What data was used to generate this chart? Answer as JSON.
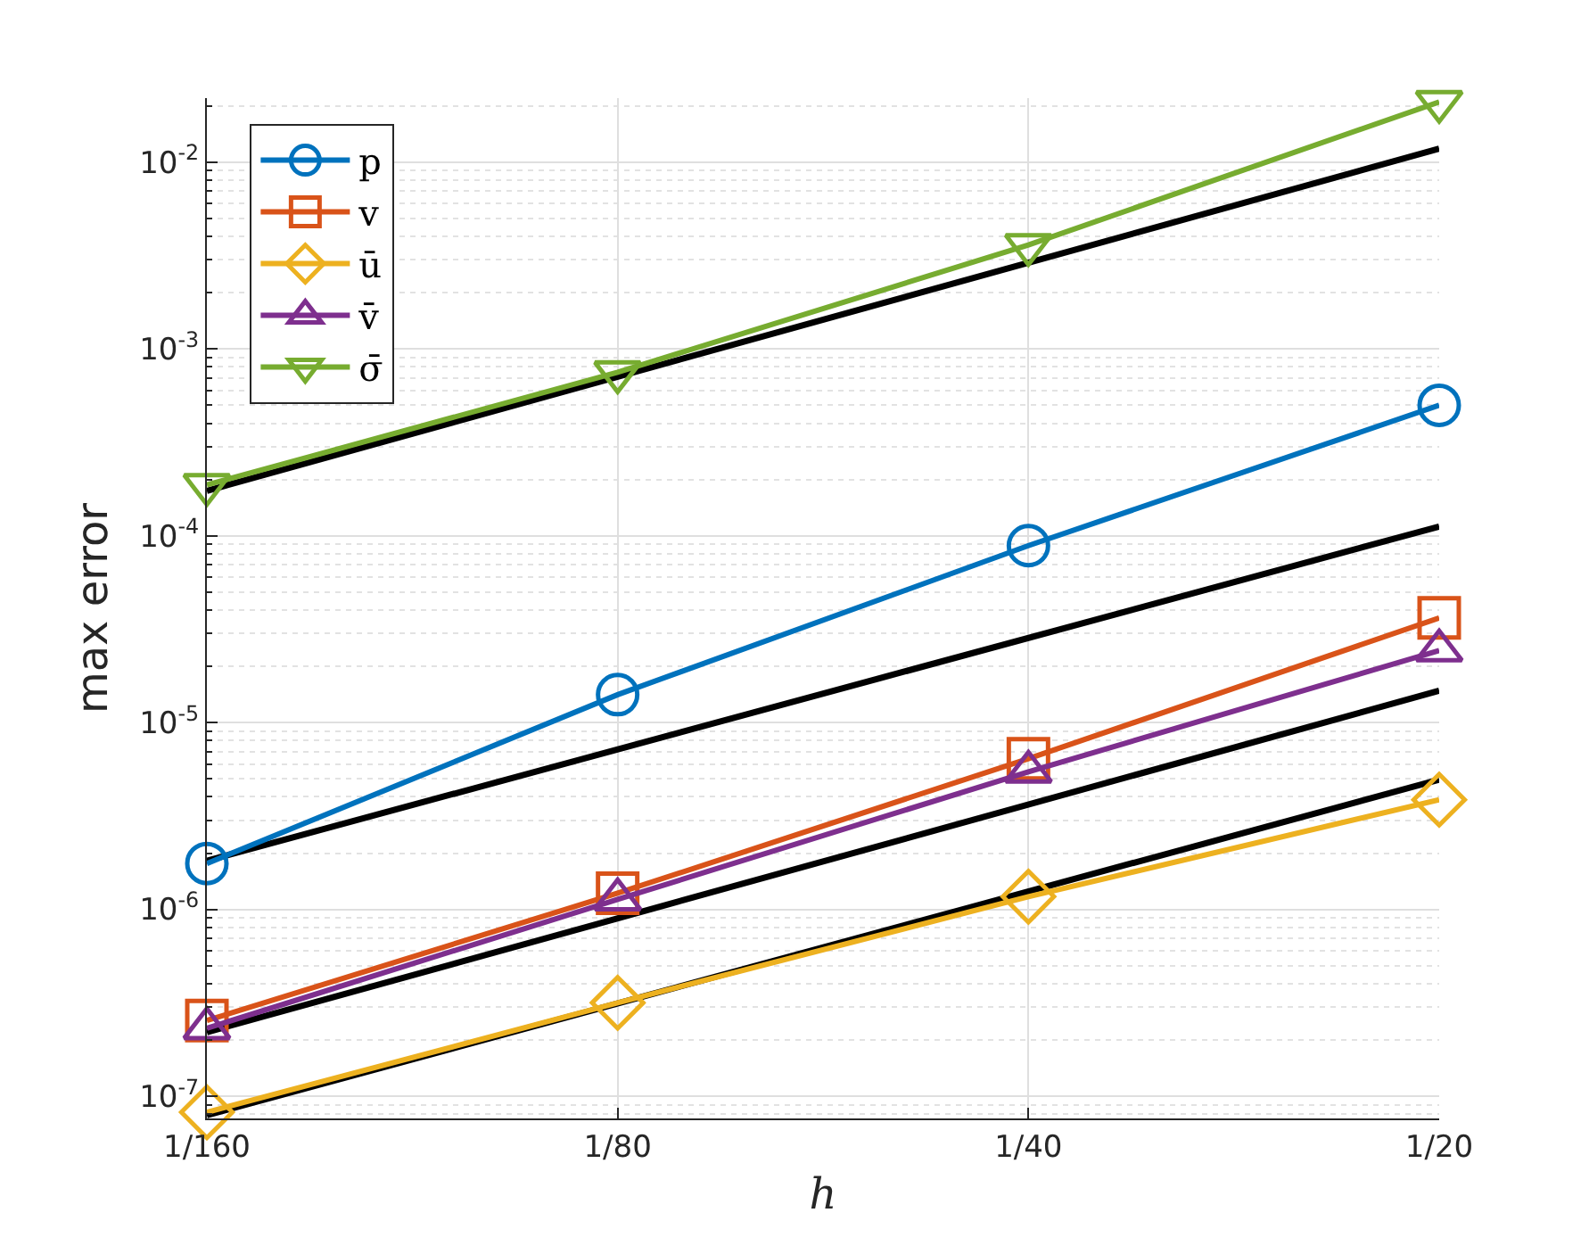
{
  "chart_data": {
    "type": "line",
    "xlabel": "h",
    "ylabel": "max error",
    "log": "y",
    "grid": true,
    "legend": "top left",
    "line_style": "solid",
    "categories": [
      "1/160",
      "1/80",
      "1/40",
      "1/20"
    ],
    "ylim": [
      7.6e-08,
      0.022
    ],
    "yticks": [
      {
        "value": 1e-07,
        "label": "10$^{-7}$"
      },
      {
        "value": 1e-06,
        "label": "10$^{-6}$"
      },
      {
        "value": 1e-05,
        "label": "10$^{-5}$"
      },
      {
        "value": 0.0001,
        "label": "10$^{-4}$"
      },
      {
        "value": 0.001,
        "label": "10$^{-3}$"
      },
      {
        "value": 0.01,
        "label": "10$^{-2}$"
      }
    ],
    "series": [
      {
        "color": "#000000",
        "x": [
          "1/160",
          "1/20"
        ],
        "values": [
          0.000174,
          0.0118
        ],
        "marker": "none"
      },
      {
        "color": "#000000",
        "x": [
          "1/160",
          "1/20"
        ],
        "values": [
          1.82e-06,
          0.000112
        ],
        "marker": "none"
      },
      {
        "color": "#000000",
        "x": [
          "1/160",
          "1/20"
        ],
        "values": [
          2.2e-07,
          1.48e-05
        ],
        "marker": "none"
      },
      {
        "color": "#000000",
        "x": [
          "1/160",
          "1/20"
        ],
        "values": [
          7.9e-08,
          4.95e-06
        ],
        "marker": "none"
      },
      {
        "name": "p",
        "color": "#0072bd",
        "values": [
          1.76e-06,
          1.41e-05,
          8.85e-05,
          0.000499
        ],
        "marker": "circle"
      },
      {
        "name": "v",
        "color": "#d95319",
        "values": [
          2.54e-07,
          1.22e-06,
          6.4e-06,
          3.63e-05
        ],
        "marker": "square"
      },
      {
        "name": "ū",
        "color": "#edb120",
        "values": [
          8.2e-08,
          3.16e-07,
          1.17e-06,
          3.86e-06
        ],
        "marker": "diamond"
      },
      {
        "name": "v̄",
        "color": "#7e2f8e",
        "values": [
          2.31e-07,
          1.13e-06,
          5.45e-06,
          2.43e-05
        ],
        "marker": "triangle"
      },
      {
        "name": "σ̄",
        "color": "#77ac30",
        "values": [
          0.000187,
          0.00075,
          0.0036,
          0.021
        ],
        "marker": "triangle-down"
      }
    ]
  }
}
